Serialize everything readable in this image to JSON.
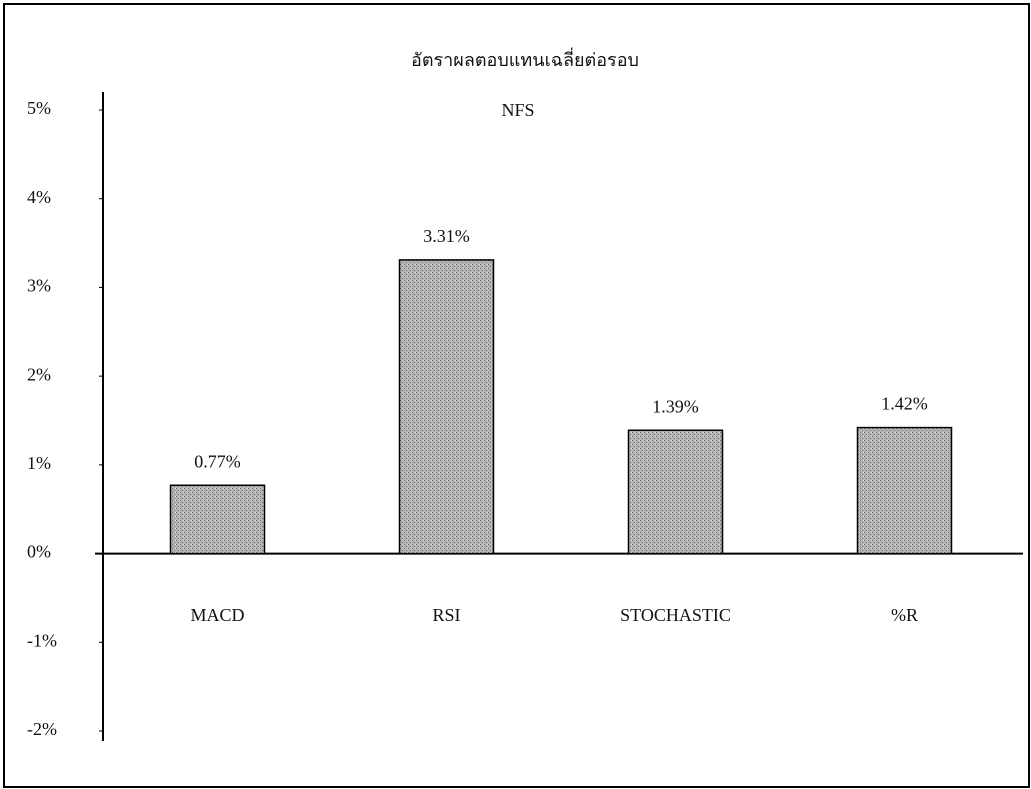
{
  "chart_data": {
    "type": "bar",
    "title": "อัตราผลตอบแทนเฉลี่ยต่อรอบ",
    "subtitle": "NFS",
    "categories": [
      "MACD",
      "RSI",
      "STOCHASTIC",
      "%R"
    ],
    "values": [
      0.77,
      3.31,
      1.39,
      1.42
    ],
    "value_labels": [
      "0.77%",
      "3.31%",
      "1.39%",
      "1.42%"
    ],
    "color": "#a9a9a9",
    "ylim": [
      -2,
      5
    ],
    "yticks": [
      {
        "value": -2,
        "label": "-2%"
      },
      {
        "value": -1,
        "label": "-1%"
      },
      {
        "value": 0,
        "label": "0%"
      },
      {
        "value": 1,
        "label": "1%"
      },
      {
        "value": 2,
        "label": "2%"
      },
      {
        "value": 3,
        "label": "3%"
      },
      {
        "value": 4,
        "label": "4%"
      },
      {
        "value": 5,
        "label": "5%"
      }
    ]
  }
}
